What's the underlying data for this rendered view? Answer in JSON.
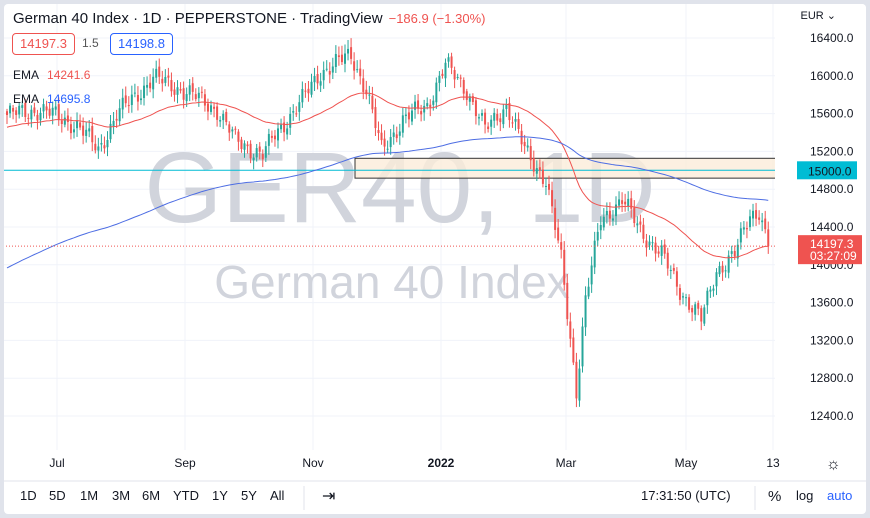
{
  "header": {
    "title": "German 40 Index · 1D · PEPPERSTONE · TradingView",
    "change": "−186.9 (−1.30%)",
    "bid": "14197.3",
    "spread": "1.5",
    "ask": "14198.8",
    "ema1_label": "EMA",
    "ema1_value": "14241.6",
    "ema2_label": "EMA",
    "ema2_value": "14695.8"
  },
  "watermark": {
    "symbol": "GER40, 1D",
    "name": "German 40 Index"
  },
  "currency": "EUR",
  "price_labels": {
    "level": "15000.0",
    "last": "14197.3",
    "countdown": "03:27:09"
  },
  "toolbar": {
    "ranges": [
      "1D",
      "5D",
      "1M",
      "3M",
      "6M",
      "YTD",
      "1Y",
      "5Y",
      "All"
    ],
    "time": "17:31:50 (UTC)",
    "percent": "%",
    "log": "log",
    "auto": "auto"
  },
  "colors": {
    "up": "#26a69a",
    "down": "#ef5350",
    "ema_fast": "#ef5350",
    "ema_slow": "#4d6de3",
    "level": "#00bcd4"
  },
  "chart_data": {
    "type": "candlestick",
    "title": "German 40 Index · 1D · PEPPERSTONE",
    "y_ticks": [
      16400,
      16000,
      15600,
      15200,
      14800,
      14400,
      14000,
      13600,
      13200,
      12800,
      12400
    ],
    "ylim": [
      12100,
      16600
    ],
    "x_ticks": [
      "Jul",
      "Sep",
      "Nov",
      "2022",
      "Mar",
      "May",
      "13"
    ],
    "anchor_closes": [
      [
        0,
        15585
      ],
      [
        11,
        15640
      ],
      [
        23,
        15480
      ],
      [
        30,
        15215
      ],
      [
        36,
        15585
      ],
      [
        48,
        15980
      ],
      [
        59,
        15830
      ],
      [
        69,
        15640
      ],
      [
        75,
        15320
      ],
      [
        84,
        15160
      ],
      [
        88,
        15370
      ],
      [
        97,
        15745
      ],
      [
        103,
        16040
      ],
      [
        113,
        16220
      ],
      [
        118,
        15850
      ],
      [
        123,
        15215
      ],
      [
        130,
        15530
      ],
      [
        138,
        15690
      ],
      [
        144,
        16115
      ],
      [
        151,
        15850
      ],
      [
        157,
        15425
      ],
      [
        164,
        15690
      ],
      [
        170,
        15215
      ],
      [
        177,
        14900
      ],
      [
        182,
        14050
      ],
      [
        187,
        12675
      ],
      [
        190,
        13630
      ],
      [
        195,
        14475
      ],
      [
        202,
        14690
      ],
      [
        208,
        14370
      ],
      [
        215,
        14105
      ],
      [
        221,
        13735
      ],
      [
        228,
        13415
      ],
      [
        233,
        13945
      ],
      [
        239,
        14105
      ],
      [
        244,
        14530
      ],
      [
        247,
        14580
      ],
      [
        250,
        14197.3
      ]
    ],
    "ema_fast": {
      "label": "EMA",
      "last": 14241.6
    },
    "ema_slow": {
      "label": "EMA",
      "last": 14695.8
    },
    "horizontal_level": 15000,
    "zone": [
      14917,
      15127
    ],
    "last_price": 14197.3
  }
}
